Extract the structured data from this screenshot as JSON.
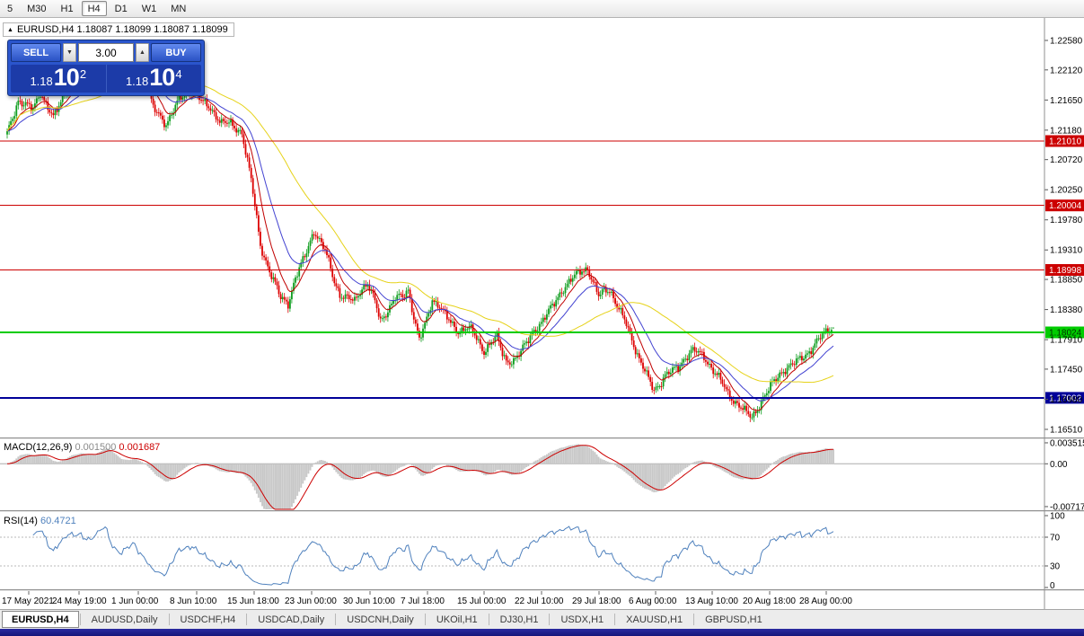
{
  "timeframe_toolbar": {
    "items": [
      {
        "label": "5",
        "active": false
      },
      {
        "label": "M30",
        "active": false
      },
      {
        "label": "H1",
        "active": false
      },
      {
        "label": "H4",
        "active": true
      },
      {
        "label": "D1",
        "active": false
      },
      {
        "label": "W1",
        "active": false
      },
      {
        "label": "MN",
        "active": false
      }
    ]
  },
  "chart_header": {
    "collapse_icon": "▲",
    "title": "EURUSD,H4 1.18087 1.18099 1.18087 1.18099"
  },
  "trade_panel": {
    "sell_label": "SELL",
    "buy_label": "BUY",
    "volume": "3.00",
    "spinner_down": "▼",
    "spinner_up": "▲",
    "sell_price": {
      "prefix": "1.18",
      "big": "10",
      "sup": "2",
      "full": "1.18102"
    },
    "buy_price": {
      "prefix": "1.18",
      "big": "10",
      "sup": "4",
      "full": "1.18104"
    }
  },
  "chart_data": {
    "type": "candlestick",
    "symbol": "EURUSD",
    "timeframe": "H4",
    "current_ohlc": {
      "open": "1.18087",
      "high": "1.18099",
      "low": "1.18087",
      "close": "1.18099"
    },
    "y_axis_ticks": [
      "1.22580",
      "1.22120",
      "1.21650",
      "1.21180",
      "1.20720",
      "1.20250",
      "1.19780",
      "1.19310",
      "1.18850",
      "1.18380",
      "1.17910",
      "1.17450",
      "1.16980",
      "1.16510"
    ],
    "x_axis_labels": [
      "17 May 2021",
      "24 May 19:00",
      "1 Jun 00:00",
      "8 Jun 10:00",
      "15 Jun 18:00",
      "23 Jun 00:00",
      "30 Jun 10:00",
      "7 Jul 18:00",
      "15 Jul 00:00",
      "22 Jul 10:00",
      "29 Jul 18:00",
      "6 Aug 00:00",
      "13 Aug 10:00",
      "20 Aug 18:00",
      "28 Aug 00:00"
    ],
    "horizontal_lines": [
      {
        "price": 1.2101,
        "label": "1.21010",
        "color": "#cc0000",
        "width": 1,
        "text_color": "#ffffff"
      },
      {
        "price": 1.20004,
        "label": "1.20004",
        "color": "#cc0000",
        "width": 1,
        "text_color": "#ffffff"
      },
      {
        "price": 1.18998,
        "label": "1.18998",
        "color": "#cc0000",
        "width": 1,
        "text_color": "#ffffff"
      },
      {
        "price": 1.18024,
        "label": "1.18024",
        "color": "#00cc00",
        "width": 2,
        "text_color": "#003300"
      },
      {
        "price": 1.17002,
        "label": "1.17002",
        "color": "#000099",
        "width": 2,
        "text_color": "#ffffff"
      }
    ],
    "moving_averages": [
      {
        "name": "fast",
        "period": 10,
        "method": "ema",
        "color": "#c00000"
      },
      {
        "name": "mid",
        "period": 24,
        "method": "ema",
        "color": "#4343d1"
      },
      {
        "name": "slow",
        "period": 60,
        "method": "sma",
        "color": "#e6d219"
      }
    ],
    "colors": {
      "up": "#0f9d1f",
      "down": "#dd0000",
      "background": "#ffffff"
    },
    "candle_count": 448,
    "price_path_keypoints": [
      [
        0,
        1.2112
      ],
      [
        6,
        1.2165
      ],
      [
        14,
        1.215
      ],
      [
        18,
        1.2178
      ],
      [
        25,
        1.2136
      ],
      [
        33,
        1.2188
      ],
      [
        45,
        1.2198
      ],
      [
        53,
        1.2242
      ],
      [
        58,
        1.2215
      ],
      [
        62,
        1.2205
      ],
      [
        69,
        1.2225
      ],
      [
        75,
        1.2195
      ],
      [
        79,
        1.2152
      ],
      [
        86,
        1.2128
      ],
      [
        93,
        1.2165
      ],
      [
        100,
        1.2182
      ],
      [
        106,
        1.216
      ],
      [
        110,
        1.2152
      ],
      [
        116,
        1.213
      ],
      [
        120,
        1.2128
      ],
      [
        127,
        1.2115
      ],
      [
        132,
        1.204
      ],
      [
        137,
        1.1938
      ],
      [
        142,
        1.1898
      ],
      [
        148,
        1.1856
      ],
      [
        152,
        1.1848
      ],
      [
        156,
        1.1888
      ],
      [
        161,
        1.192
      ],
      [
        166,
        1.1962
      ],
      [
        172,
        1.193
      ],
      [
        177,
        1.1882
      ],
      [
        180,
        1.1862
      ],
      [
        188,
        1.185
      ],
      [
        192,
        1.1872
      ],
      [
        195,
        1.188
      ],
      [
        199,
        1.185
      ],
      [
        202,
        1.1818
      ],
      [
        206,
        1.1838
      ],
      [
        210,
        1.1858
      ],
      [
        214,
        1.1856
      ],
      [
        217,
        1.1868
      ],
      [
        220,
        1.1828
      ],
      [
        223,
        1.1792
      ],
      [
        227,
        1.182
      ],
      [
        230,
        1.1852
      ],
      [
        234,
        1.1846
      ],
      [
        236,
        1.1836
      ],
      [
        240,
        1.1815
      ],
      [
        244,
        1.1802
      ],
      [
        248,
        1.1812
      ],
      [
        251,
        1.1808
      ],
      [
        255,
        1.1785
      ],
      [
        258,
        1.1772
      ],
      [
        262,
        1.179
      ],
      [
        265,
        1.1795
      ],
      [
        268,
        1.1768
      ],
      [
        270,
        1.1756
      ],
      [
        274,
        1.176
      ],
      [
        278,
        1.1772
      ],
      [
        282,
        1.179
      ],
      [
        285,
        1.1806
      ],
      [
        289,
        1.1818
      ],
      [
        292,
        1.183
      ],
      [
        296,
        1.1848
      ],
      [
        300,
        1.1868
      ],
      [
        304,
        1.188
      ],
      [
        307,
        1.189
      ],
      [
        311,
        1.19
      ],
      [
        314,
        1.1902
      ],
      [
        317,
        1.188
      ],
      [
        320,
        1.1858
      ],
      [
        323,
        1.1868
      ],
      [
        326,
        1.187
      ],
      [
        329,
        1.185
      ],
      [
        332,
        1.1832
      ],
      [
        335,
        1.1815
      ],
      [
        338,
        1.1792
      ],
      [
        341,
        1.1768
      ],
      [
        345,
        1.1742
      ],
      [
        348,
        1.1722
      ],
      [
        350,
        1.1712
      ],
      [
        353,
        1.1722
      ],
      [
        356,
        1.1736
      ],
      [
        360,
        1.1742
      ],
      [
        363,
        1.1747
      ],
      [
        366,
        1.176
      ],
      [
        370,
        1.1774
      ],
      [
        373,
        1.1772
      ],
      [
        377,
        1.1764
      ],
      [
        380,
        1.1752
      ],
      [
        384,
        1.1736
      ],
      [
        387,
        1.1722
      ],
      [
        390,
        1.1706
      ],
      [
        394,
        1.1694
      ],
      [
        397,
        1.1686
      ],
      [
        400,
        1.1676
      ],
      [
        403,
        1.1669
      ],
      [
        406,
        1.1684
      ],
      [
        409,
        1.17
      ],
      [
        412,
        1.1713
      ],
      [
        415,
        1.1726
      ],
      [
        418,
        1.1737
      ],
      [
        421,
        1.1746
      ],
      [
        424,
        1.1751
      ],
      [
        427,
        1.1756
      ],
      [
        430,
        1.1763
      ],
      [
        433,
        1.177
      ],
      [
        436,
        1.178
      ],
      [
        439,
        1.1791
      ],
      [
        442,
        1.18
      ],
      [
        445,
        1.1808
      ],
      [
        447,
        1.181
      ]
    ],
    "indicators": {
      "macd": {
        "label": "MACD(12,26,9)",
        "values": [
          "0.001500",
          "0.001687"
        ],
        "axis_labels": [
          {
            "value": 0.003515,
            "label": "0.003515"
          },
          {
            "value": 0,
            "label": "0.00"
          },
          {
            "value": -0.007175,
            "label": "-0.007175"
          }
        ],
        "histogram_color": "#c8c8c8",
        "signal_color": "#cc0000"
      },
      "rsi": {
        "label": "RSI(14)",
        "value": "60.4721",
        "axis_labels": [
          "100",
          "70",
          "30",
          "0"
        ],
        "levels": [
          70,
          30
        ],
        "line_color": "#4f81bd"
      }
    }
  },
  "tab_bar": {
    "tabs": [
      {
        "label": "EURUSD,H4",
        "active": true
      },
      {
        "label": "AUDUSD,Daily",
        "active": false
      },
      {
        "label": "USDCHF,H4",
        "active": false
      },
      {
        "label": "USDCAD,Daily",
        "active": false
      },
      {
        "label": "USDCNH,Daily",
        "active": false
      },
      {
        "label": "UKOil,H1",
        "active": false
      },
      {
        "label": "DJ30,H1",
        "active": false
      },
      {
        "label": "USDX,H1",
        "active": false
      },
      {
        "label": "XAUUSD,H1",
        "active": false
      },
      {
        "label": "GBPUSD,H1",
        "active": false
      }
    ]
  }
}
